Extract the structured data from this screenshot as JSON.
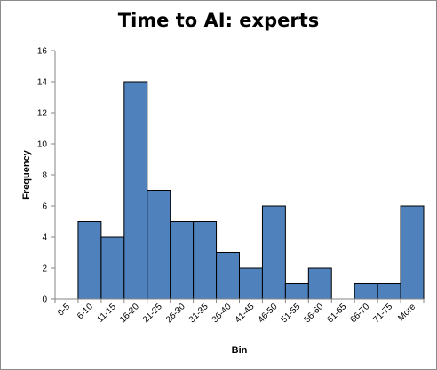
{
  "chart_data": {
    "type": "bar",
    "title": "Time to AI: experts",
    "xlabel": "Bin",
    "ylabel": "Frequency",
    "categories": [
      "0-5",
      "6-10",
      "11-15",
      "16-20",
      "21-25",
      "26-30",
      "31-35",
      "36-40",
      "41-45",
      "46-50",
      "51-55",
      "56-60",
      "61-65",
      "66-70",
      "71-75",
      "More"
    ],
    "values": [
      0,
      5,
      4,
      14,
      7,
      5,
      5,
      3,
      2,
      6,
      1,
      2,
      0,
      1,
      1,
      6
    ],
    "ylim": [
      0,
      16
    ],
    "yticks": [
      0,
      2,
      4,
      6,
      8,
      10,
      12,
      14,
      16
    ],
    "grid": false,
    "legend": "none",
    "bar_color": "#4f81bd",
    "bar_edge_color": "#000000"
  }
}
